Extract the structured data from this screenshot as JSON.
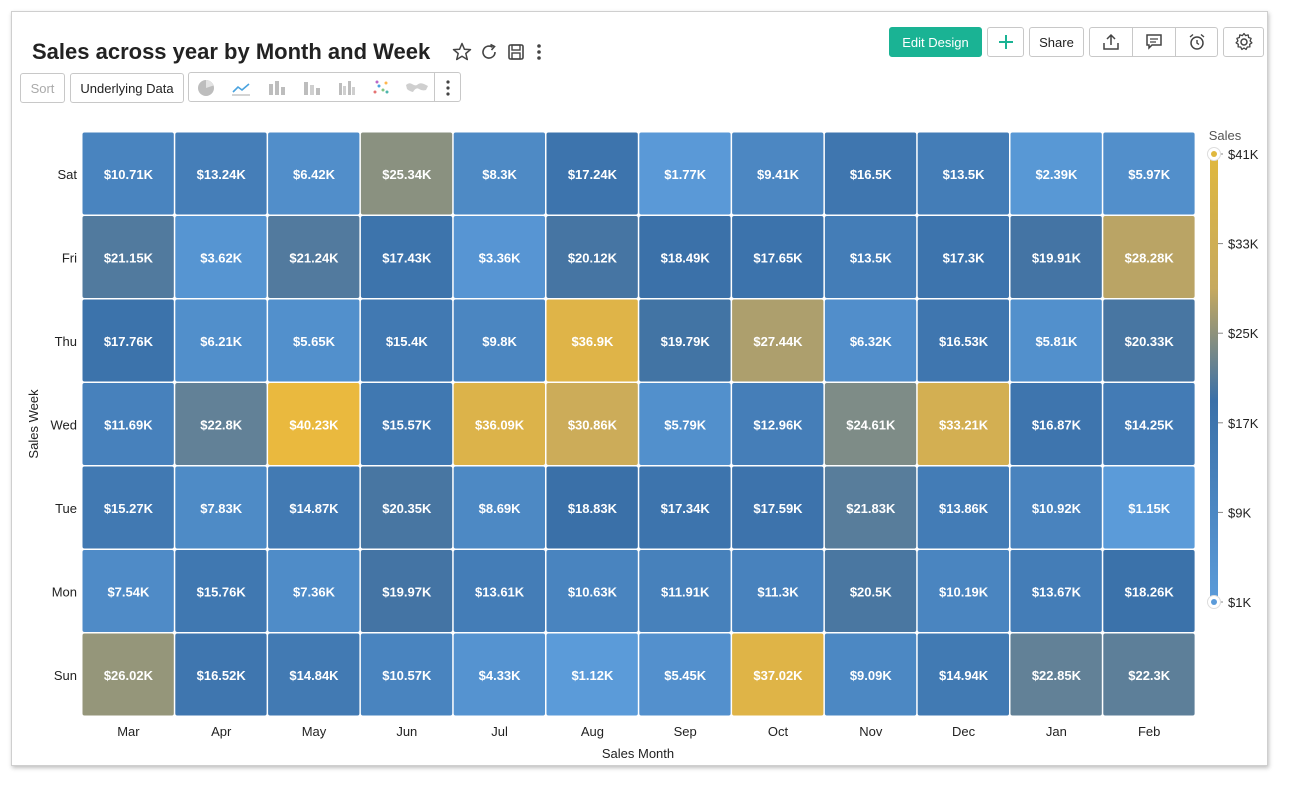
{
  "header": {
    "title": "Sales across year by Month and Week",
    "edit_design_label": "Edit Design",
    "share_label": "Share",
    "icons": [
      "star-icon",
      "refresh-icon",
      "save-icon",
      "more-vertical-icon",
      "plus-icon",
      "export-icon",
      "comment-icon",
      "alarm-icon",
      "settings-icon"
    ]
  },
  "toolbar": {
    "sort_label": "Sort",
    "underlying_data_label": "Underlying Data",
    "chart_type_icons": [
      "pie-chart-icon",
      "line-chart-icon",
      "bar-chart-icon",
      "stacked-bar-icon",
      "grouped-bar-icon",
      "scatter-icon",
      "map-icon",
      "more-vertical-icon"
    ]
  },
  "colors": {
    "accent": "#1ab394",
    "scale_low": "#5b9bd9",
    "scale_mid": "#3a70a8",
    "scale_gold": "#c6a95e",
    "scale_high": "#ecba3c"
  },
  "chart_data": {
    "type": "heatmap",
    "xlabel": "Sales Month",
    "ylabel": "Sales Week",
    "x": [
      "Mar",
      "Apr",
      "May",
      "Jun",
      "Jul",
      "Aug",
      "Sep",
      "Oct",
      "Nov",
      "Dec",
      "Jan",
      "Feb"
    ],
    "y": [
      "Sat",
      "Fri",
      "Thu",
      "Wed",
      "Tue",
      "Mon",
      "Sun"
    ],
    "values": [
      [
        10.71,
        13.24,
        6.42,
        25.34,
        8.3,
        17.24,
        1.77,
        9.41,
        16.5,
        13.5,
        2.39,
        5.97
      ],
      [
        21.15,
        3.62,
        21.24,
        17.43,
        3.36,
        20.12,
        18.49,
        17.65,
        13.5,
        17.3,
        19.91,
        28.28
      ],
      [
        17.76,
        6.21,
        5.65,
        15.4,
        9.8,
        36.9,
        19.79,
        27.44,
        6.32,
        16.53,
        5.81,
        20.33
      ],
      [
        11.69,
        22.8,
        40.23,
        15.57,
        36.09,
        30.86,
        5.79,
        12.96,
        24.61,
        33.21,
        16.87,
        14.25
      ],
      [
        15.27,
        7.83,
        14.87,
        20.35,
        8.69,
        18.83,
        17.34,
        17.59,
        21.83,
        13.86,
        10.92,
        1.15
      ],
      [
        7.54,
        15.76,
        7.36,
        19.97,
        13.61,
        10.63,
        11.91,
        11.3,
        20.5,
        10.19,
        13.67,
        18.26
      ],
      [
        26.02,
        16.52,
        14.84,
        10.57,
        4.33,
        1.12,
        5.45,
        37.02,
        9.09,
        14.94,
        22.85,
        22.3
      ]
    ],
    "labels": [
      [
        "$10.71K",
        "$13.24K",
        "$6.42K",
        "$25.34K",
        "$8.3K",
        "$17.24K",
        "$1.77K",
        "$9.41K",
        "$16.5K",
        "$13.5K",
        "$2.39K",
        "$5.97K"
      ],
      [
        "$21.15K",
        "$3.62K",
        "$21.24K",
        "$17.43K",
        "$3.36K",
        "$20.12K",
        "$18.49K",
        "$17.65K",
        "$13.5K",
        "$17.3K",
        "$19.91K",
        "$28.28K"
      ],
      [
        "$17.76K",
        "$6.21K",
        "$5.65K",
        "$15.4K",
        "$9.8K",
        "$36.9K",
        "$19.79K",
        "$27.44K",
        "$6.32K",
        "$16.53K",
        "$5.81K",
        "$20.33K"
      ],
      [
        "$11.69K",
        "$22.8K",
        "$40.23K",
        "$15.57K",
        "$36.09K",
        "$30.86K",
        "$5.79K",
        "$12.96K",
        "$24.61K",
        "$33.21K",
        "$16.87K",
        "$14.25K"
      ],
      [
        "$15.27K",
        "$7.83K",
        "$14.87K",
        "$20.35K",
        "$8.69K",
        "$18.83K",
        "$17.34K",
        "$17.59K",
        "$21.83K",
        "$13.86K",
        "$10.92K",
        "$1.15K"
      ],
      [
        "$7.54K",
        "$15.76K",
        "$7.36K",
        "$19.97K",
        "$13.61K",
        "$10.63K",
        "$11.91K",
        "$11.3K",
        "$20.5K",
        "$10.19K",
        "$13.67K",
        "$18.26K"
      ],
      [
        "$26.02K",
        "$16.52K",
        "$14.84K",
        "$10.57K",
        "$4.33K",
        "$1.12K",
        "$5.45K",
        "$37.02K",
        "$9.09K",
        "$14.94K",
        "$22.85K",
        "$22.3K"
      ]
    ],
    "legend": {
      "title": "Sales",
      "position": "right",
      "ticks": [
        "$41K",
        "$33K",
        "$25K",
        "$17K",
        "$9K",
        "$1K"
      ],
      "tick_values": [
        41,
        33,
        25,
        17,
        9,
        1
      ],
      "range": [
        1,
        41
      ]
    }
  }
}
